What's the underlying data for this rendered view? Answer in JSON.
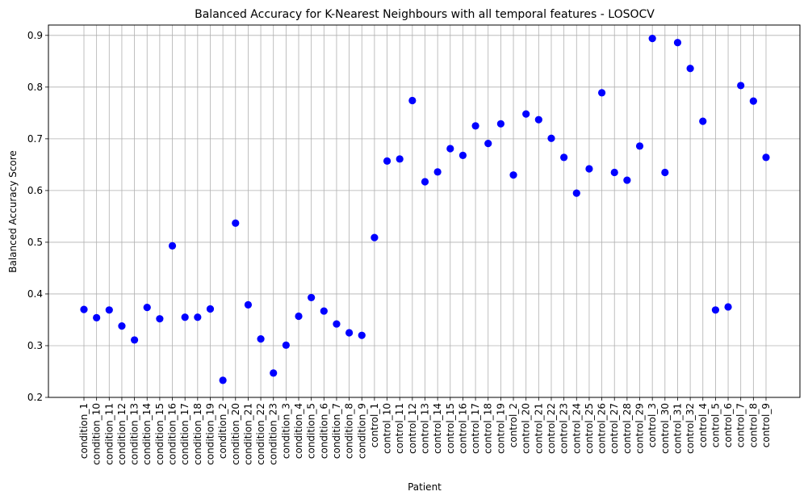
{
  "chart_data": {
    "type": "scatter",
    "title": "Balanced Accuracy for K-Nearest Neighbours with all temporal features - LOSOCV",
    "xlabel": "Patient",
    "ylabel": "Balanced Accuracy Score",
    "ylim": [
      0.2,
      0.92
    ],
    "yticks": [
      "0.2",
      "0.3",
      "0.4",
      "0.5",
      "0.6",
      "0.7",
      "0.8",
      "0.9"
    ],
    "grid": true,
    "point_color": "#0000ff",
    "categories": [
      "condition_1",
      "condition_10",
      "condition_11",
      "condition_12",
      "condition_13",
      "condition_14",
      "condition_15",
      "condition_16",
      "condition_17",
      "condition_18",
      "condition_19",
      "condition_2",
      "condition_20",
      "condition_21",
      "condition_22",
      "condition_23",
      "condition_3",
      "condition_4",
      "condition_5",
      "condition_6",
      "condition_7",
      "condition_8",
      "condition_9",
      "control_1",
      "control_10",
      "control_11",
      "control_12",
      "control_13",
      "control_14",
      "control_15",
      "control_16",
      "control_17",
      "control_18",
      "control_19",
      "control_2",
      "control_20",
      "control_21",
      "control_22",
      "control_23",
      "control_24",
      "control_25",
      "control_26",
      "control_27",
      "control_28",
      "control_29",
      "control_3",
      "control_30",
      "control_31",
      "control_32",
      "control_4",
      "control_5",
      "control_6",
      "control_7",
      "control_8",
      "control_9"
    ],
    "values": [
      0.37,
      0.354,
      0.369,
      0.338,
      0.311,
      0.374,
      0.352,
      0.493,
      0.355,
      0.355,
      0.371,
      0.233,
      0.537,
      0.379,
      0.313,
      0.247,
      0.301,
      0.357,
      0.393,
      0.367,
      0.342,
      0.325,
      0.32,
      0.509,
      0.657,
      0.661,
      0.774,
      0.617,
      0.636,
      0.681,
      0.668,
      0.725,
      0.691,
      0.729,
      0.63,
      0.748,
      0.737,
      0.701,
      0.664,
      0.595,
      0.642,
      0.789,
      0.635,
      0.62,
      0.686,
      0.894,
      0.635,
      0.886,
      0.836,
      0.734,
      0.369,
      0.375,
      0.803,
      0.773,
      0.664
    ]
  }
}
